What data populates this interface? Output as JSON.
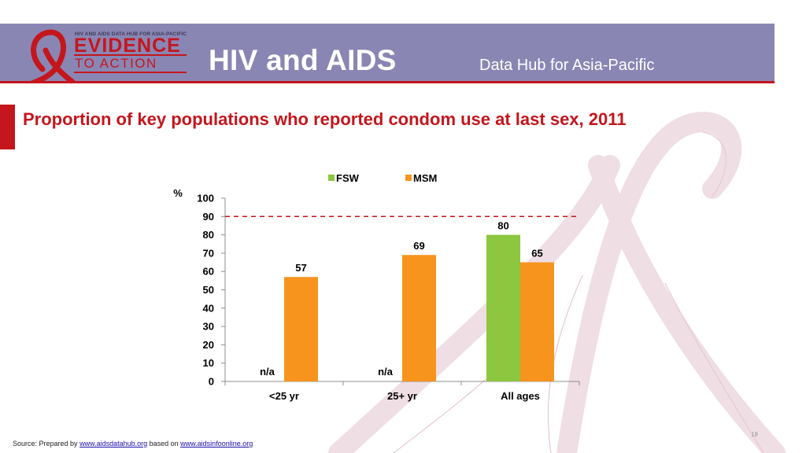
{
  "header": {
    "logo_small": "HIV AND AIDS DATA HUB FOR ASIA-PACIFIC",
    "logo_line1": "EVIDENCE",
    "logo_line2": "TO ACTION",
    "title": "HIV and AIDS",
    "subtitle": "Data Hub for Asia-Pacific"
  },
  "colors": {
    "banner": "#8a86b3",
    "accent_red": "#c4161c",
    "fsw": "#8dc63f",
    "msm": "#f7941d"
  },
  "chart_data": {
    "type": "bar",
    "title": "Proportion of key populations who reported condom use at last sex, 2011",
    "ylabel": "%",
    "xlabel": "",
    "categories": [
      "<25 yr",
      "25+ yr",
      "All ages"
    ],
    "series": [
      {
        "name": "FSW",
        "color": "#8dc63f",
        "values": [
          null,
          null,
          80
        ],
        "labels": [
          "n/a",
          "n/a",
          "80"
        ]
      },
      {
        "name": "MSM",
        "color": "#f7941d",
        "values": [
          57,
          69,
          65
        ],
        "labels": [
          "57",
          "69",
          "65"
        ]
      }
    ],
    "ylim": [
      0,
      100
    ],
    "yticks": [
      0,
      10,
      20,
      30,
      40,
      50,
      60,
      70,
      80,
      90,
      100
    ],
    "reference_line": {
      "value": 90,
      "style": "dashed",
      "color": "#c4161c"
    },
    "legend": "top",
    "grid": false
  },
  "footer": {
    "source_prefix": "Source: Prepared by ",
    "source_link1": "www.aidsdatahub.org",
    "source_middle": " based on ",
    "source_link2": "www.aidsinfoonline.org",
    "page_number": "18"
  }
}
